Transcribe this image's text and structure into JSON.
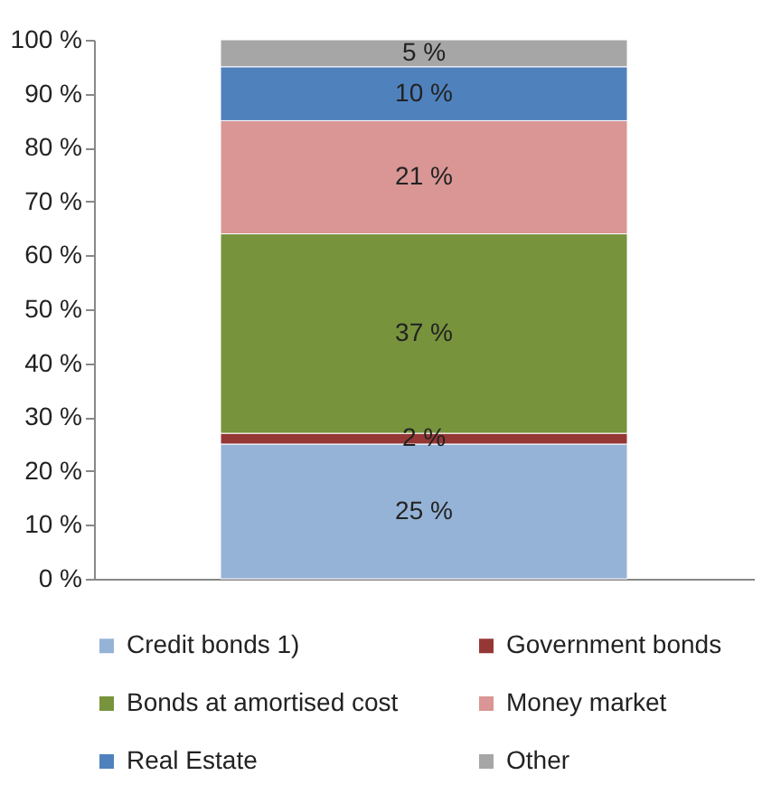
{
  "chart_data": {
    "type": "bar",
    "stacked": true,
    "categories": [
      null
    ],
    "ylim": [
      0,
      100
    ],
    "yticks": [
      {
        "value": 0,
        "label": "0 %"
      },
      {
        "value": 10,
        "label": "10 %"
      },
      {
        "value": 20,
        "label": "20 %"
      },
      {
        "value": 30,
        "label": "30 %"
      },
      {
        "value": 40,
        "label": "40 %"
      },
      {
        "value": 50,
        "label": "50 %"
      },
      {
        "value": 60,
        "label": "60 %"
      },
      {
        "value": 70,
        "label": "70 %"
      },
      {
        "value": 80,
        "label": "80 %"
      },
      {
        "value": 90,
        "label": "90 %"
      },
      {
        "value": 100,
        "label": "100 %"
      }
    ],
    "series": [
      {
        "name": "Credit bonds 1)",
        "color": "#95b3d7",
        "values": [
          25
        ],
        "value_labels": [
          "25 %"
        ]
      },
      {
        "name": "Government bonds",
        "color": "#953735",
        "values": [
          2
        ],
        "value_labels": [
          "2 %"
        ]
      },
      {
        "name": "Bonds at amortised cost",
        "color": "#77933c",
        "values": [
          37
        ],
        "value_labels": [
          "37 %"
        ]
      },
      {
        "name": "Money market",
        "color": "#d99694",
        "values": [
          21
        ],
        "value_labels": [
          "21 %"
        ]
      },
      {
        "name": "Real Estate",
        "color": "#4f81bd",
        "values": [
          10
        ],
        "value_labels": [
          "10 %"
        ]
      },
      {
        "name": "Other",
        "color": "#a6a6a6",
        "values": [
          5
        ],
        "value_labels": [
          "5 %"
        ]
      }
    ],
    "legend": "bottom",
    "grid": false
  }
}
